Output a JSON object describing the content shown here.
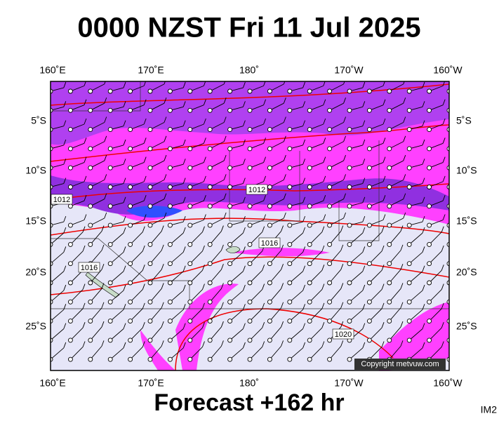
{
  "title": "0000 NZST Fri 11 Jul 2025",
  "map": {
    "top_lon_labels": [
      "160˚E",
      "170˚E",
      "180˚",
      "170˚W",
      "160˚W"
    ],
    "bottom_lon_labels": [
      "160˚E",
      "170˚E",
      "180˚",
      "170˚W",
      "160˚W"
    ],
    "left_lat_labels": [
      "5˚S",
      "10˚S",
      "15˚S",
      "20˚S",
      "25˚S"
    ],
    "right_lat_labels": [
      "5˚S",
      "10˚S",
      "15˚S",
      "20˚S",
      "25˚S"
    ],
    "isobar_labels": [
      "1012",
      "1012",
      "1016",
      "1016",
      "1020"
    ],
    "copyright": "Copyright metvuw.com"
  },
  "footer": {
    "forecast": "Forecast +162 hr",
    "image_id": "IM2"
  }
}
